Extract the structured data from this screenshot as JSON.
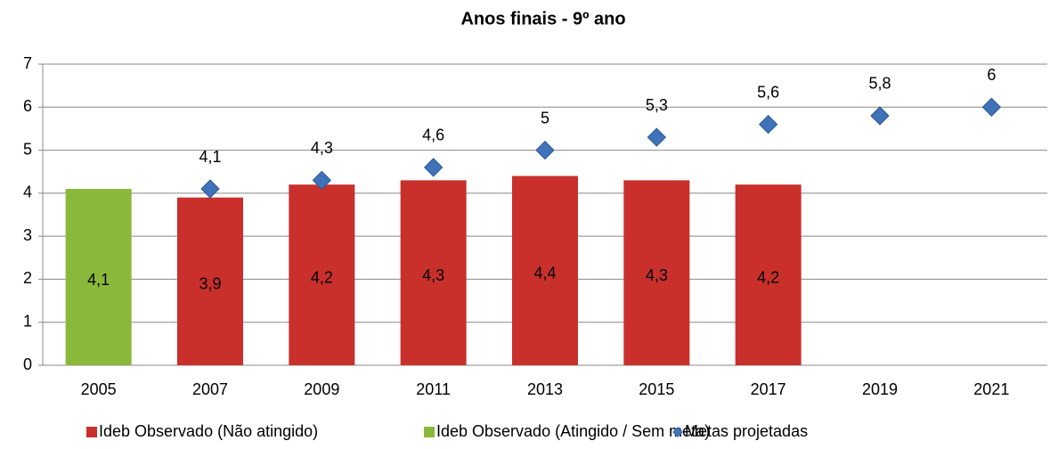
{
  "chart_data": {
    "type": "bar",
    "title": "Anos finais - 9º ano",
    "categories": [
      "2005",
      "2007",
      "2009",
      "2011",
      "2013",
      "2015",
      "2017",
      "2019",
      "2021"
    ],
    "series": [
      {
        "name": "Ideb Observado (Não atingido)",
        "type": "bar",
        "color": "#c9302c",
        "values": [
          null,
          3.9,
          4.2,
          4.3,
          4.4,
          4.3,
          4.2,
          null,
          null
        ],
        "value_labels": [
          null,
          "3,9",
          "4,2",
          "4,3",
          "4,4",
          "4,3",
          "4,2",
          null,
          null
        ]
      },
      {
        "name": "Ideb Observado (Atingido / Sem meta)",
        "type": "bar",
        "color": "#8ab83a",
        "values": [
          4.1,
          null,
          null,
          null,
          null,
          null,
          null,
          null,
          null
        ],
        "value_labels": [
          "4,1",
          null,
          null,
          null,
          null,
          null,
          null,
          null,
          null
        ]
      },
      {
        "name": "Metas projetadas",
        "type": "scatter",
        "color": "#3f72b8",
        "values": [
          null,
          4.1,
          4.3,
          4.6,
          5,
          5.3,
          5.6,
          5.8,
          6
        ],
        "value_labels": [
          null,
          "4,1",
          "4,3",
          "4,6",
          null,
          "5,3",
          "5,6",
          "5,8",
          null
        ]
      }
    ],
    "ylim": [
      0,
      7
    ],
    "yticks": [
      0,
      1,
      2,
      3,
      4,
      5,
      6,
      7
    ],
    "grid": true,
    "legend": "bottom"
  }
}
